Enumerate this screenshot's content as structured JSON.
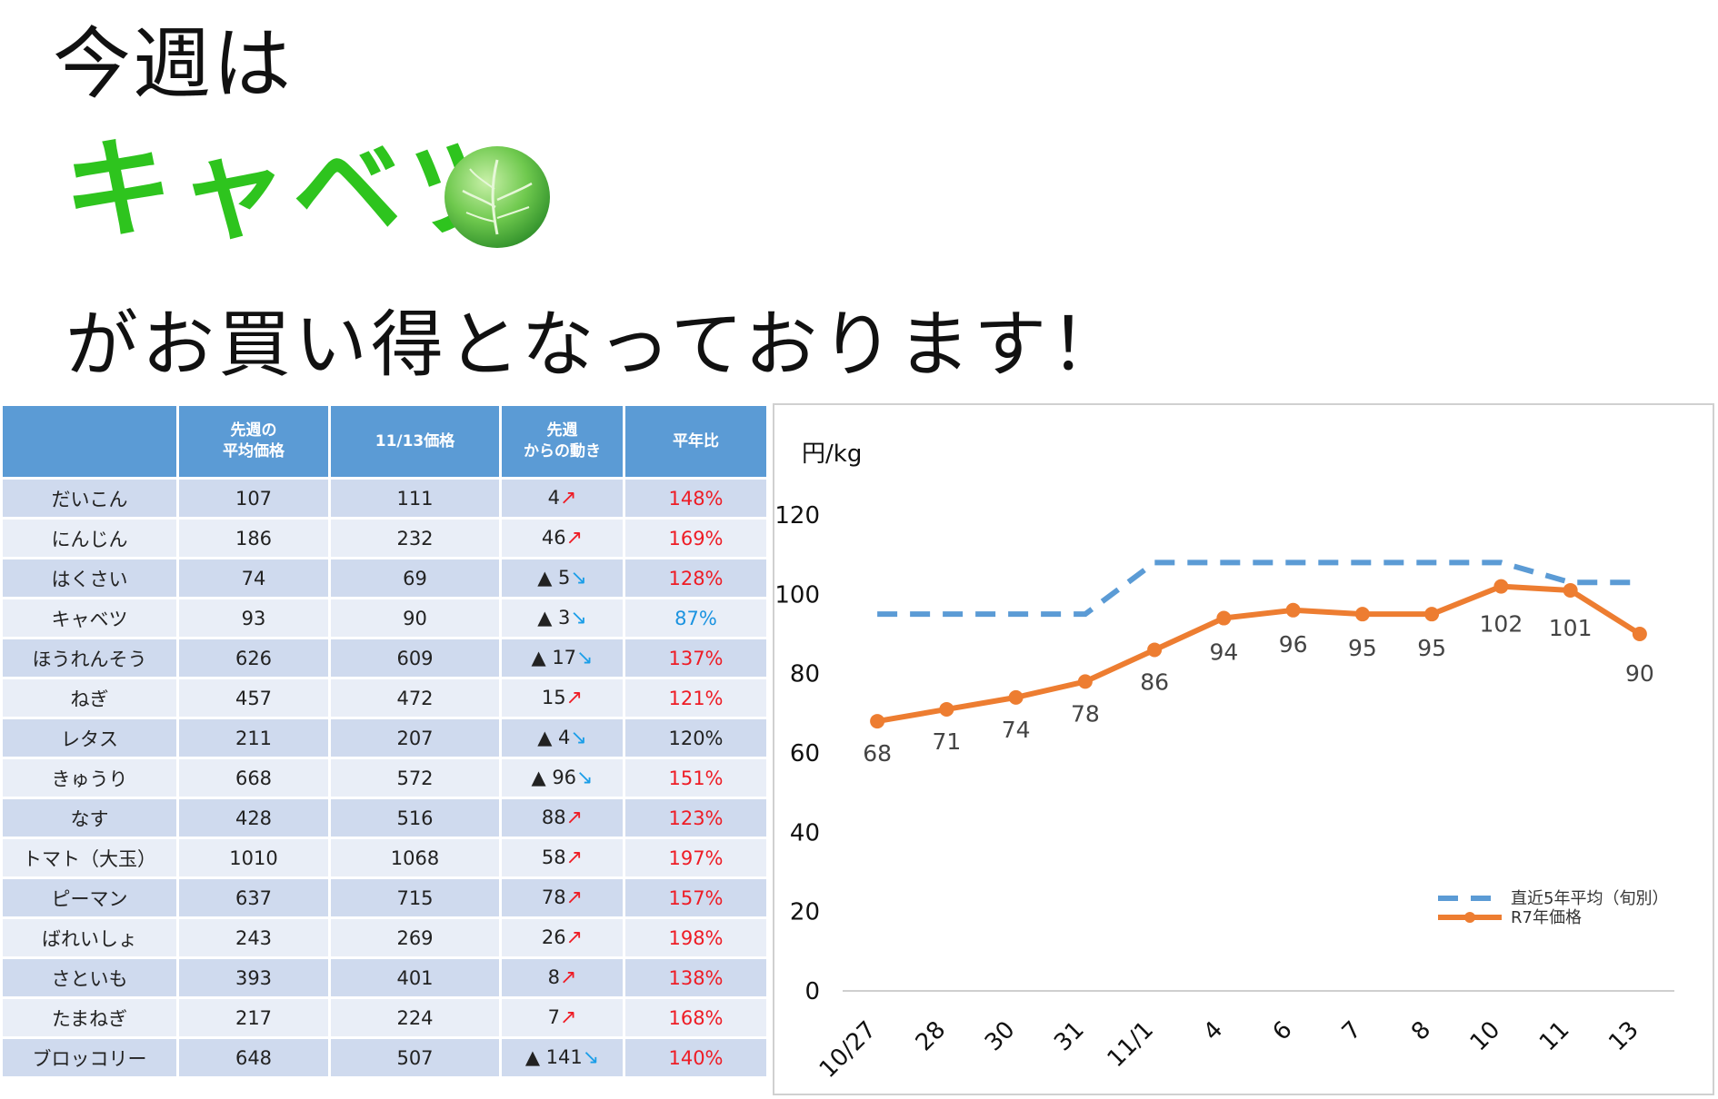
{
  "headline": {
    "line1": "今週は",
    "line2": "キャベツ",
    "line3": "がお買い得となっております！"
  },
  "table": {
    "headers": [
      "",
      "先週の\n平均価格",
      "11/13価格",
      "先週\nからの動き",
      "平年比"
    ],
    "rows": [
      {
        "name": "だいこん",
        "last_week": "107",
        "today": "111",
        "change": "4",
        "dir": "up",
        "ratio": "148%",
        "ratio_color": "red"
      },
      {
        "name": "にんじん",
        "last_week": "186",
        "today": "232",
        "change": "46",
        "dir": "up",
        "ratio": "169%",
        "ratio_color": "red"
      },
      {
        "name": "はくさい",
        "last_week": "74",
        "today": "69",
        "change": "▲ 5",
        "dir": "down",
        "ratio": "128%",
        "ratio_color": "red"
      },
      {
        "name": "キャベツ",
        "last_week": "93",
        "today": "90",
        "change": "▲ 3",
        "dir": "down",
        "ratio": "87%",
        "ratio_color": "blue"
      },
      {
        "name": "ほうれんそう",
        "last_week": "626",
        "today": "609",
        "change": "▲ 17",
        "dir": "down",
        "ratio": "137%",
        "ratio_color": "red"
      },
      {
        "name": "ねぎ",
        "last_week": "457",
        "today": "472",
        "change": "15",
        "dir": "up",
        "ratio": "121%",
        "ratio_color": "red"
      },
      {
        "name": "レタス",
        "last_week": "211",
        "today": "207",
        "change": "▲ 4",
        "dir": "down",
        "ratio": "120%",
        "ratio_color": "black"
      },
      {
        "name": "きゅうり",
        "last_week": "668",
        "today": "572",
        "change": "▲ 96",
        "dir": "down",
        "ratio": "151%",
        "ratio_color": "red"
      },
      {
        "name": "なす",
        "last_week": "428",
        "today": "516",
        "change": "88",
        "dir": "up",
        "ratio": "123%",
        "ratio_color": "red"
      },
      {
        "name": "トマト（大玉）",
        "last_week": "1010",
        "today": "1068",
        "change": "58",
        "dir": "up",
        "ratio": "197%",
        "ratio_color": "red"
      },
      {
        "name": "ピーマン",
        "last_week": "637",
        "today": "715",
        "change": "78",
        "dir": "up",
        "ratio": "157%",
        "ratio_color": "red"
      },
      {
        "name": "ばれいしょ",
        "last_week": "243",
        "today": "269",
        "change": "26",
        "dir": "up",
        "ratio": "198%",
        "ratio_color": "red"
      },
      {
        "name": "さといも",
        "last_week": "393",
        "today": "401",
        "change": "8",
        "dir": "up",
        "ratio": "138%",
        "ratio_color": "red"
      },
      {
        "name": "たまねぎ",
        "last_week": "217",
        "today": "224",
        "change": "7",
        "dir": "up",
        "ratio": "168%",
        "ratio_color": "red"
      },
      {
        "name": "ブロッコリー",
        "last_week": "648",
        "today": "507",
        "change": "▲ 141",
        "dir": "down",
        "ratio": "140%",
        "ratio_color": "red"
      }
    ]
  },
  "colors": {
    "headline_green": "#2ec41e",
    "header_blue": "#5b9bd5",
    "row_dark": "#cfdaee",
    "row_light": "#e9eef7",
    "up_red": "#ee1c25",
    "down_blue": "#1b9ee8",
    "avg_line": "#5b9bd5",
    "price_line": "#ed7d31"
  },
  "chart_data": {
    "type": "line",
    "ylabel": "円/kg",
    "categories": [
      "10/27",
      "28",
      "30",
      "31",
      "11/1",
      "4",
      "6",
      "7",
      "8",
      "10",
      "11",
      "13"
    ],
    "ylim": [
      0,
      120
    ],
    "yticks": [
      "0",
      "20",
      "40",
      "60",
      "80",
      "100",
      "120"
    ],
    "grid": false,
    "legend_position": "bottom-right",
    "series": [
      {
        "name": "直近5年平均（旬別）",
        "style": "dashed",
        "color": "#5b9bd5",
        "values": [
          95,
          95,
          95,
          95,
          108,
          108,
          108,
          108,
          108,
          108,
          103,
          103
        ]
      },
      {
        "name": "R7年価格",
        "style": "solid-markers",
        "color": "#ed7d31",
        "values": [
          68,
          71,
          74,
          78,
          86,
          94,
          96,
          95,
          95,
          102,
          101,
          90
        ]
      }
    ]
  }
}
